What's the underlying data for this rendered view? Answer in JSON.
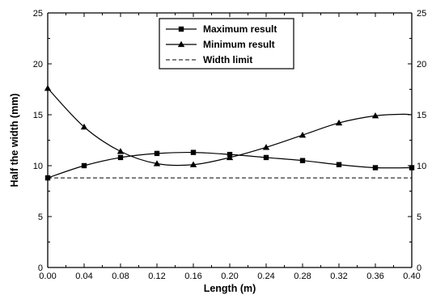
{
  "chart_data": {
    "type": "line",
    "title": "",
    "xlabel": "Length (m)",
    "ylabel": "Half the width (mm)",
    "xlim": [
      0,
      0.4
    ],
    "ylim": [
      0,
      25
    ],
    "x_ticks": [
      "0.00",
      "0.04",
      "0.08",
      "0.12",
      "0.16",
      "0.20",
      "0.24",
      "0.28",
      "0.32",
      "0.36",
      "0.40"
    ],
    "y_ticks": [
      "0",
      "5",
      "10",
      "15",
      "20",
      "25"
    ],
    "y_ticks_right": [
      "0",
      "5",
      "10",
      "15",
      "20",
      "25"
    ],
    "grid": false,
    "legend_position": "top-center",
    "series": [
      {
        "name": "Maximum result",
        "marker": "square",
        "line_style": "solid",
        "color": "#000000",
        "x": [
          0.0,
          0.04,
          0.08,
          0.12,
          0.16,
          0.2,
          0.24,
          0.28,
          0.32,
          0.36,
          0.4
        ],
        "y": [
          8.8,
          10.0,
          10.8,
          11.2,
          11.3,
          11.1,
          10.8,
          10.5,
          10.1,
          9.8,
          9.8
        ]
      },
      {
        "name": "Minimum result",
        "marker": "triangle",
        "line_style": "solid",
        "color": "#000000",
        "x": [
          0.0,
          0.04,
          0.08,
          0.12,
          0.16,
          0.2,
          0.24,
          0.28,
          0.32,
          0.36
        ],
        "y": [
          17.6,
          13.8,
          11.4,
          10.2,
          10.1,
          10.8,
          11.8,
          13.0,
          14.2,
          14.9
        ]
      },
      {
        "name": "Width limit",
        "marker": "none",
        "line_style": "dashed",
        "color": "#000000",
        "x": [
          0.0,
          0.4
        ],
        "y": [
          8.8,
          8.8
        ]
      }
    ]
  }
}
